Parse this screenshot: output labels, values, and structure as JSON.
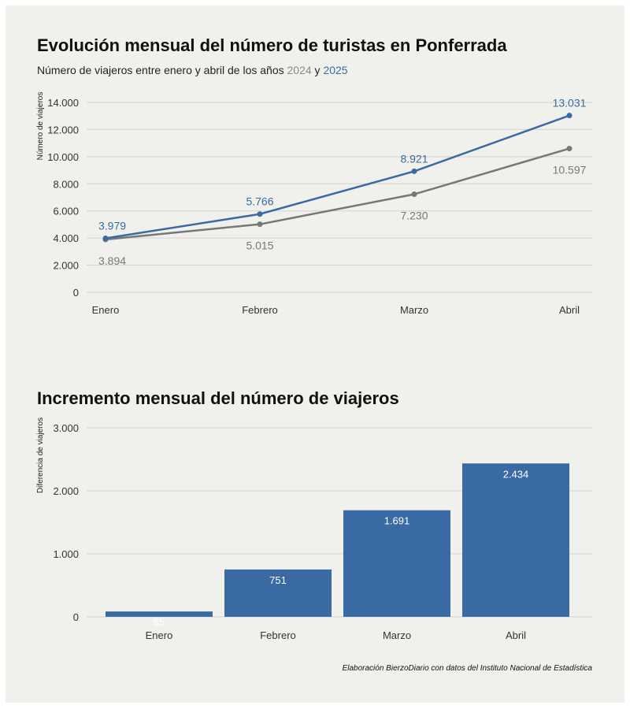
{
  "chart_data": [
    {
      "type": "line",
      "title": "Evolución mensual del número de turistas en Ponferrada",
      "subtitle_prefix": "Número de viajeros entre enero y abril de los años ",
      "subtitle_mid": " y ",
      "ylabel": "Número de viajeros",
      "categories": [
        "Enero",
        "Febrero",
        "Marzo",
        "Abril"
      ],
      "ylim": [
        0,
        14000
      ],
      "yticks": [
        0,
        2000,
        4000,
        6000,
        8000,
        10000,
        12000,
        14000
      ],
      "ytick_labels": [
        "0",
        "2.000",
        "4.000",
        "6.000",
        "8.000",
        "10.000",
        "12.000",
        "14.000"
      ],
      "grid": true,
      "series": [
        {
          "name": "2024",
          "color": "#777777",
          "values": [
            3894,
            5015,
            7230,
            10597
          ],
          "labels": [
            "3.894",
            "5.015",
            "7.230",
            "10.597"
          ],
          "label_position": "below"
        },
        {
          "name": "2025",
          "color": "#3a6aa3",
          "values": [
            3979,
            5766,
            8921,
            13031
          ],
          "labels": [
            "3.979",
            "5.766",
            "8.921",
            "13.031"
          ],
          "label_position": "above"
        }
      ]
    },
    {
      "type": "bar",
      "title": "Incremento mensual del número de viajeros",
      "ylabel": "Diferencia de viajeros",
      "categories": [
        "Enero",
        "Febrero",
        "Marzo",
        "Abril"
      ],
      "values": [
        85,
        751,
        1691,
        2434
      ],
      "value_labels": [
        "85",
        "751",
        "1.691",
        "2.434"
      ],
      "ylim": [
        0,
        3000
      ],
      "yticks": [
        0,
        1000,
        2000,
        3000
      ],
      "ytick_labels": [
        "0",
        "1.000",
        "2.000",
        "3.000"
      ],
      "grid": true,
      "color": "#3a6aa3"
    }
  ],
  "caption": "Elaboración BierzoDiario con datos del Instituto Nacional de Estadística"
}
